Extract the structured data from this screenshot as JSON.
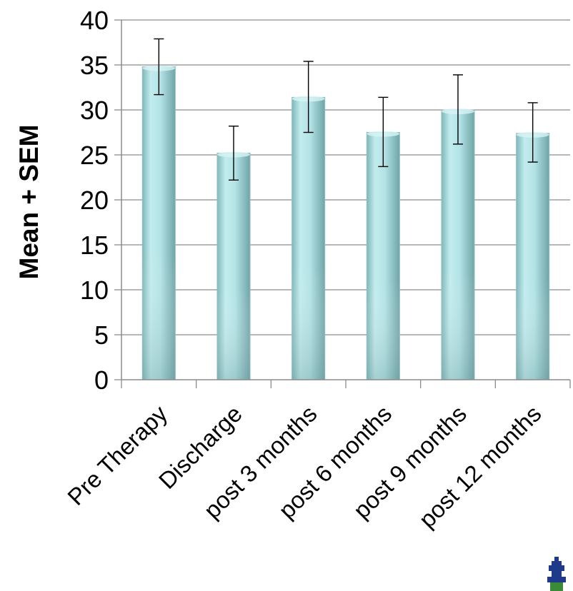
{
  "chart_data": {
    "type": "bar",
    "categories": [
      "Pre Therapy",
      "Discharge",
      "post 3 months",
      "post 6 months",
      "post 9 months",
      "post 12 months"
    ],
    "values": [
      34.8,
      25.2,
      31.4,
      27.5,
      30.0,
      27.4
    ],
    "error_plus": [
      3.1,
      3.0,
      4.0,
      3.9,
      3.9,
      3.4
    ],
    "error_minus": [
      3.1,
      3.0,
      3.9,
      3.8,
      3.8,
      3.2
    ],
    "title": "",
    "xlabel": "",
    "ylabel": "Mean + SEM",
    "ylim": [
      0,
      40
    ],
    "yticks": [
      0,
      5,
      10,
      15,
      20,
      25,
      30,
      35,
      40
    ],
    "grid": true,
    "legend": "none",
    "bar_color": "#a9dde0",
    "grid_color": "#8c8c8c"
  },
  "logo": {
    "icon": "institution-logo-icon",
    "color": "#1f3a8a"
  }
}
